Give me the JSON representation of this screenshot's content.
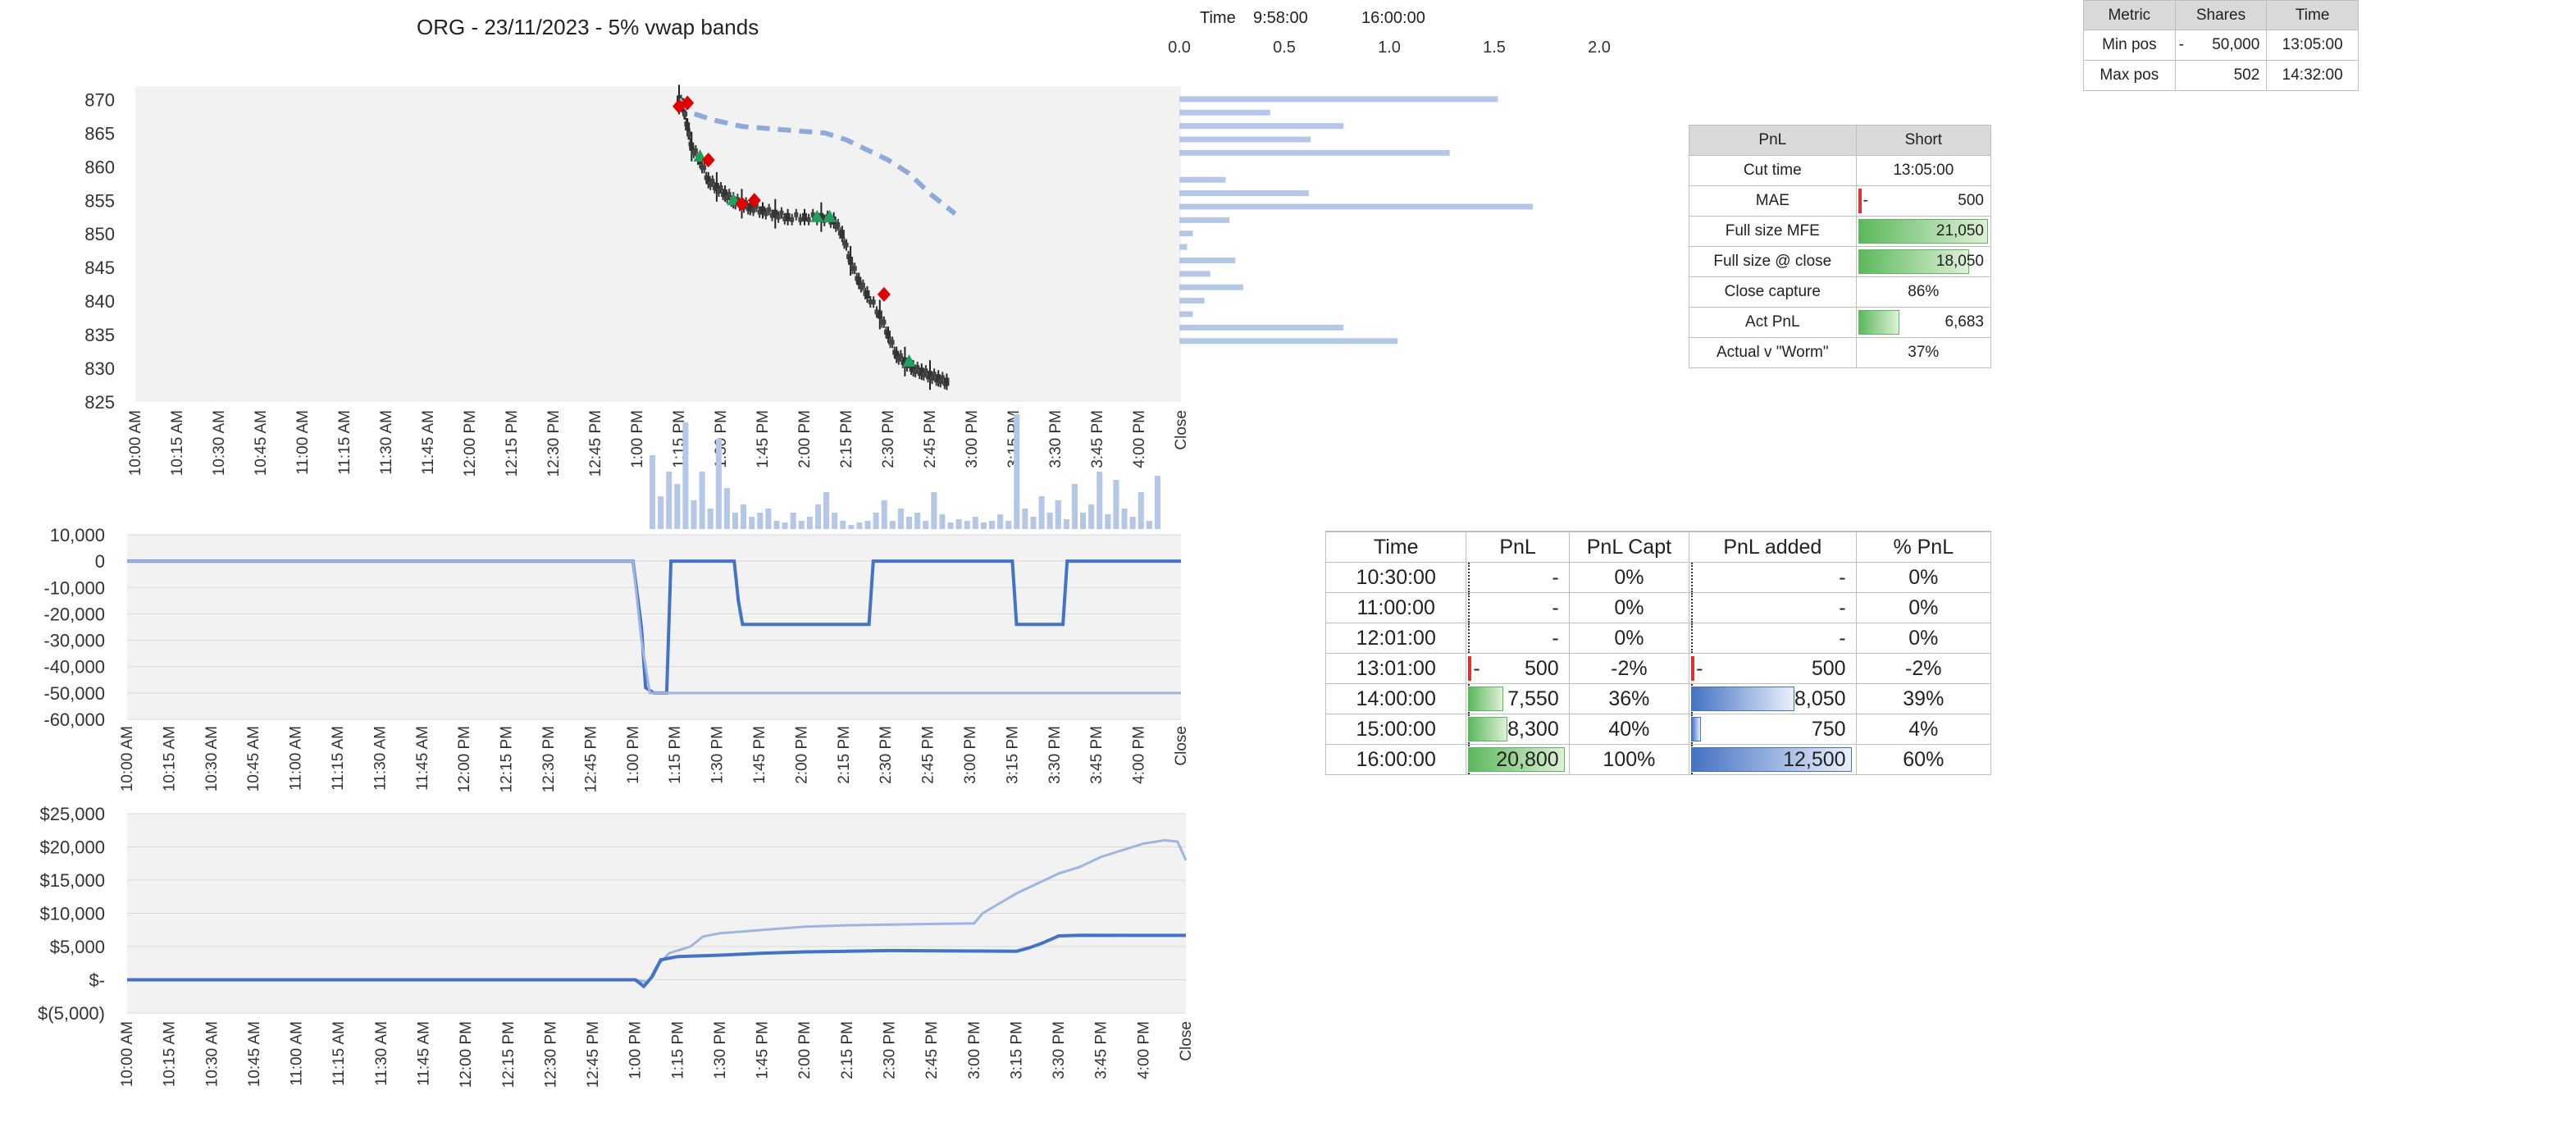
{
  "header": {
    "title": "ORG - 23/11/2023 - 5% vwap bands",
    "time_label": "Time",
    "time_start": "9:58:00",
    "time_end": "16:00:00",
    "vol_ticks": [
      "0.0",
      "0.5",
      "1.0",
      "1.5",
      "2.0"
    ]
  },
  "x_time_labels": [
    "10:00 AM",
    "10:15 AM",
    "10:30 AM",
    "10:45 AM",
    "11:00 AM",
    "11:15 AM",
    "11:30 AM",
    "11:45 AM",
    "12:00 PM",
    "12:15 PM",
    "12:30 PM",
    "12:45 PM",
    "1:00 PM",
    "1:15 PM",
    "1:30 PM",
    "1:45 PM",
    "2:00 PM",
    "2:15 PM",
    "2:30 PM",
    "2:45 PM",
    "3:00 PM",
    "3:15 PM",
    "3:30 PM",
    "3:45 PM",
    "4:00 PM",
    "Close"
  ],
  "metrics_table": {
    "headers": [
      "Metric",
      "Shares",
      "Time"
    ],
    "rows": [
      {
        "metric": "Min pos",
        "sign": "-",
        "shares": "50,000",
        "time": "13:05:00"
      },
      {
        "metric": "Max pos",
        "sign": "",
        "shares": "502",
        "time": "14:32:00"
      }
    ]
  },
  "pnl_table": {
    "headers": [
      "PnL",
      "Short"
    ],
    "rows": [
      {
        "label": "Cut time",
        "value": "13:05:00",
        "bar": "none",
        "fill": 0
      },
      {
        "label": "MAE",
        "sign": "-",
        "value": "500",
        "bar": "neg",
        "fill": 0.02
      },
      {
        "label": "Full size MFE",
        "value": "21,050",
        "bar": "green",
        "fill": 1.0
      },
      {
        "label": "Full size @ close",
        "value": "18,050",
        "bar": "green",
        "fill": 0.86
      },
      {
        "label": "Close capture",
        "value": "86%",
        "bar": "none",
        "fill": 0
      },
      {
        "label": "Act PnL",
        "value": "6,683",
        "bar": "green",
        "fill": 0.32
      },
      {
        "label": "Actual v \"Worm\"",
        "value": "37%",
        "bar": "none",
        "fill": 0
      }
    ]
  },
  "time_table": {
    "headers": [
      "Time",
      "PnL",
      "PnL Capt",
      "PnL added",
      "% PnL"
    ],
    "rows": [
      {
        "time": "10:30:00",
        "pnl": "-",
        "pnl_fill": 0,
        "capt": "0%",
        "added": "-",
        "added_fill": 0,
        "pct": "0%",
        "neg": false
      },
      {
        "time": "11:00:00",
        "pnl": "-",
        "pnl_fill": 0,
        "capt": "0%",
        "added": "-",
        "added_fill": 0,
        "pct": "0%",
        "neg": false
      },
      {
        "time": "12:01:00",
        "pnl": "-",
        "pnl_fill": 0,
        "capt": "0%",
        "added": "-",
        "added_fill": 0,
        "pct": "0%",
        "neg": false
      },
      {
        "time": "13:01:00",
        "pnl_sign": "-",
        "pnl": "500",
        "pnl_fill": 0,
        "capt": "-2%",
        "added_sign": "-",
        "added": "500",
        "added_fill": 0,
        "pct": "-2%",
        "neg": true
      },
      {
        "time": "14:00:00",
        "pnl": "7,550",
        "pnl_fill": 0.36,
        "capt": "36%",
        "added": "8,050",
        "added_fill": 0.64,
        "pct": "39%",
        "neg": false
      },
      {
        "time": "15:00:00",
        "pnl": "8,300",
        "pnl_fill": 0.4,
        "capt": "40%",
        "added": "750",
        "added_fill": 0.06,
        "pct": "4%",
        "neg": false
      },
      {
        "time": "16:00:00",
        "pnl": "20,800",
        "pnl_fill": 1.0,
        "capt": "100%",
        "added": "12,500",
        "added_fill": 1.0,
        "pct": "60%",
        "neg": false
      }
    ]
  },
  "chart_data": [
    {
      "type": "candlestick",
      "title": "ORG - 23/11/2023 - 5% vwap bands",
      "ylim": [
        825,
        872
      ],
      "y_ticks": [
        "870",
        "865",
        "860",
        "855",
        "850",
        "845",
        "840",
        "835",
        "830",
        "825"
      ],
      "x_ticks": [
        "10:00 AM",
        "10:15 AM",
        "10:30 AM",
        "10:45 AM",
        "11:00 AM",
        "11:15 AM",
        "11:30 AM",
        "11:45 AM",
        "12:00 PM",
        "12:15 PM",
        "12:30 PM",
        "12:45 PM",
        "1:00 PM",
        "1:15 PM",
        "1:30 PM",
        "1:45 PM",
        "2:00 PM",
        "2:15 PM",
        "2:30 PM",
        "2:45 PM",
        "3:00 PM",
        "3:15 PM",
        "3:30 PM",
        "3:45 PM",
        "4:00 PM",
        "Close"
      ],
      "price_path": [
        [
          13.0,
          870
        ],
        [
          13.1,
          869
        ],
        [
          13.2,
          866
        ],
        [
          13.3,
          863
        ],
        [
          13.5,
          861
        ],
        [
          13.7,
          858
        ],
        [
          13.9,
          857
        ],
        [
          14.1,
          856
        ],
        [
          14.3,
          855
        ],
        [
          14.5,
          854.5
        ],
        [
          14.7,
          854
        ],
        [
          15.0,
          853.5
        ],
        [
          15.3,
          853
        ],
        [
          15.6,
          852.5
        ],
        [
          16.0,
          852.5
        ],
        [
          16.4,
          852.5
        ],
        [
          16.7,
          852
        ],
        [
          16.9,
          850
        ],
        [
          17.1,
          846
        ],
        [
          17.3,
          843
        ],
        [
          17.5,
          841
        ],
        [
          17.8,
          838
        ],
        [
          18.0,
          835
        ],
        [
          18.2,
          832
        ],
        [
          18.4,
          831
        ],
        [
          18.6,
          830
        ],
        [
          18.8,
          829.5
        ],
        [
          19.0,
          829
        ],
        [
          19.2,
          828.5
        ],
        [
          19.4,
          828
        ]
      ],
      "vwap_line": [
        [
          13.0,
          870
        ],
        [
          13.3,
          868
        ],
        [
          13.8,
          867
        ],
        [
          14.5,
          866
        ],
        [
          15.5,
          865.5
        ],
        [
          16.5,
          865
        ],
        [
          17.0,
          864
        ],
        [
          17.5,
          862.5
        ],
        [
          18.0,
          861
        ],
        [
          18.5,
          859
        ],
        [
          19.0,
          856
        ],
        [
          19.5,
          853.5
        ],
        [
          19.6,
          853
        ]
      ],
      "buy_markers": [
        [
          13.5,
          861.5
        ],
        [
          14.3,
          855
        ],
        [
          16.3,
          852.5
        ],
        [
          16.6,
          852.5
        ],
        [
          18.5,
          831
        ]
      ],
      "sell_markers": [
        [
          13.0,
          869
        ],
        [
          13.2,
          869.5
        ],
        [
          13.7,
          861
        ],
        [
          14.5,
          854.5
        ],
        [
          14.8,
          855
        ],
        [
          17.9,
          841
        ]
      ],
      "volume_profile": [
        {
          "price": 870,
          "value": 1.65
        },
        {
          "price": 868,
          "value": 0.47
        },
        {
          "price": 866,
          "value": 0.85
        },
        {
          "price": 864,
          "value": 0.68
        },
        {
          "price": 862,
          "value": 1.4
        },
        {
          "price": 858,
          "value": 0.24
        },
        {
          "price": 856,
          "value": 0.67
        },
        {
          "price": 854,
          "value": 1.83
        },
        {
          "price": 852,
          "value": 0.26
        },
        {
          "price": 850,
          "value": 0.07
        },
        {
          "price": 848,
          "value": 0.04
        },
        {
          "price": 846,
          "value": 0.29
        },
        {
          "price": 844,
          "value": 0.16
        },
        {
          "price": 842,
          "value": 0.33
        },
        {
          "price": 840,
          "value": 0.13
        },
        {
          "price": 838,
          "value": 0.07
        },
        {
          "price": 836,
          "value": 0.85
        },
        {
          "price": 834,
          "value": 1.13
        }
      ]
    },
    {
      "type": "line",
      "ylim": [
        -60000,
        10000
      ],
      "y_ticks": [
        "10,000",
        "0",
        "-10,000",
        "-20,000",
        "-30,000",
        "-40,000",
        "-50,000",
        "-60,000"
      ],
      "series": [
        {
          "color": "#4472c4",
          "width": 4,
          "points": [
            [
              0,
              0
            ],
            [
              12.0,
              0
            ],
            [
              12.2,
              -25000
            ],
            [
              12.3,
              -48000
            ],
            [
              12.5,
              -50000
            ],
            [
              12.8,
              -50000
            ],
            [
              12.9,
              0
            ],
            [
              14.4,
              0
            ],
            [
              14.5,
              -15000
            ],
            [
              14.6,
              -24000
            ],
            [
              17.6,
              -24000
            ],
            [
              17.7,
              0
            ],
            [
              21.0,
              0
            ],
            [
              21.1,
              -24000
            ],
            [
              22.2,
              -24000
            ],
            [
              22.3,
              0
            ],
            [
              25,
              0
            ]
          ]
        },
        {
          "color": "#9db5e0",
          "width": 3,
          "points": [
            [
              0,
              0
            ],
            [
              12.0,
              0
            ],
            [
              12.2,
              -30000
            ],
            [
              12.4,
              -50000
            ],
            [
              25,
              -50000
            ]
          ]
        }
      ]
    },
    {
      "type": "line",
      "ylim": [
        -5000,
        25000
      ],
      "y_ticks": [
        "$25,000",
        "$20,000",
        "$15,000",
        "$10,000",
        "$5,000",
        "$-",
        "$(5,000)"
      ],
      "series": [
        {
          "color": "#9db5e0",
          "width": 3,
          "points": [
            [
              0,
              0
            ],
            [
              12.0,
              0
            ],
            [
              12.3,
              -400
            ],
            [
              12.5,
              2000
            ],
            [
              12.8,
              4000
            ],
            [
              13.3,
              5000
            ],
            [
              13.6,
              6500
            ],
            [
              14.0,
              7000
            ],
            [
              15.0,
              7500
            ],
            [
              16.0,
              8000
            ],
            [
              17.0,
              8200
            ],
            [
              18.0,
              8300
            ],
            [
              20.0,
              8500
            ],
            [
              20.2,
              10000
            ],
            [
              21.0,
              13000
            ],
            [
              21.5,
              14500
            ],
            [
              22.0,
              16000
            ],
            [
              22.5,
              17000
            ],
            [
              23.0,
              18500
            ],
            [
              23.5,
              19500
            ],
            [
              24.0,
              20500
            ],
            [
              24.5,
              21000
            ],
            [
              24.8,
              20800
            ],
            [
              25,
              18000
            ]
          ]
        },
        {
          "color": "#4472c4",
          "width": 4,
          "points": [
            [
              0,
              0
            ],
            [
              12.0,
              0
            ],
            [
              12.2,
              -1000
            ],
            [
              12.4,
              500
            ],
            [
              12.6,
              3000
            ],
            [
              13.0,
              3500
            ],
            [
              14.0,
              3700
            ],
            [
              15.0,
              4000
            ],
            [
              16.0,
              4200
            ],
            [
              17.0,
              4300
            ],
            [
              18.0,
              4400
            ],
            [
              21.0,
              4300
            ],
            [
              21.3,
              4800
            ],
            [
              21.6,
              5500
            ],
            [
              22.0,
              6600
            ],
            [
              22.5,
              6700
            ],
            [
              25,
              6683
            ]
          ]
        }
      ]
    }
  ]
}
